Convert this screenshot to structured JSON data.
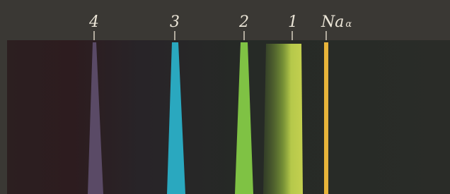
{
  "spectrum": {
    "lines": [
      {
        "label": "4"
      },
      {
        "label": "3"
      },
      {
        "label": "2"
      },
      {
        "label": "1"
      },
      {
        "label": "Na",
        "subscript": "α"
      }
    ]
  }
}
